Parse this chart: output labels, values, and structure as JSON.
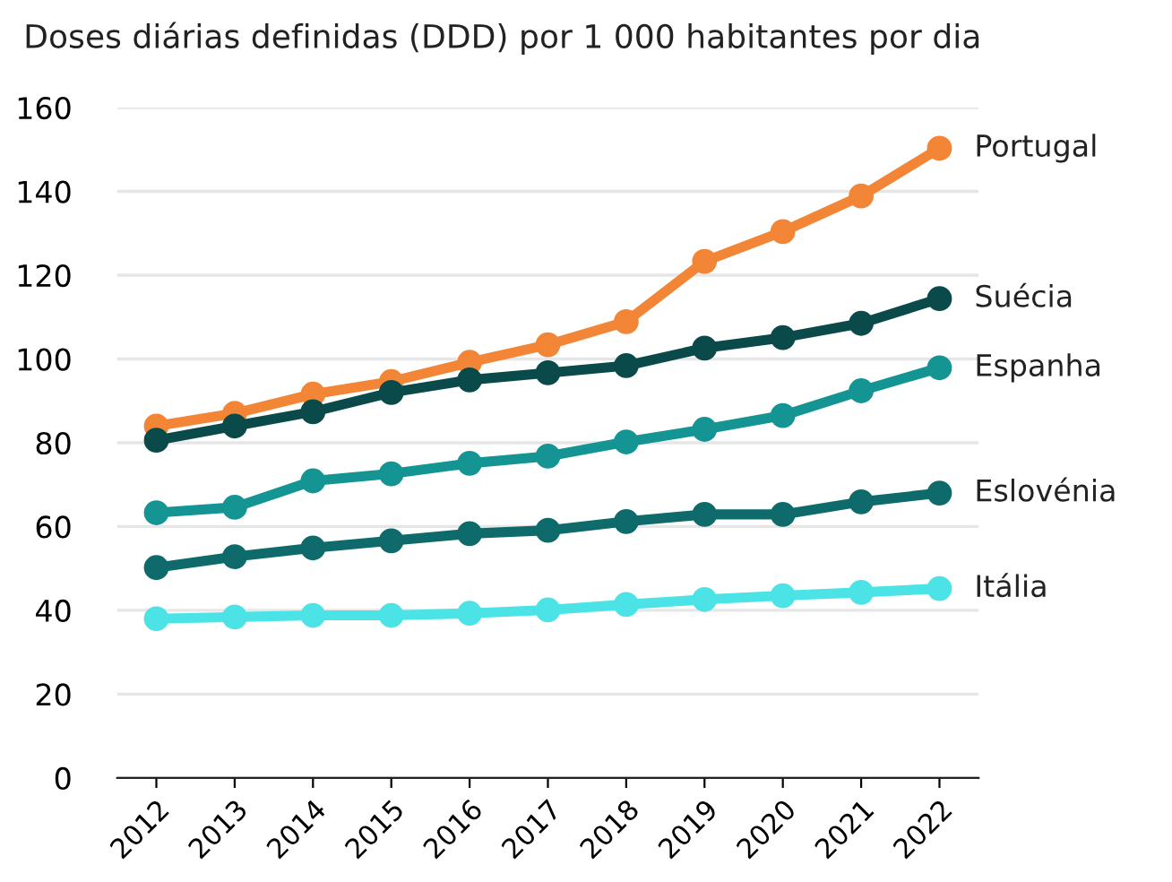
{
  "chart_data": {
    "type": "line",
    "title": "Doses diárias definidas (DDD) por 1 000 habitantes por dia",
    "categories": [
      "2012",
      "2013",
      "2014",
      "2015",
      "2016",
      "2017",
      "2018",
      "2019",
      "2020",
      "2021",
      "2022"
    ],
    "series": [
      {
        "name": "Portugal",
        "color": "#f28536",
        "values": [
          84,
          87,
          91.6,
          94.6,
          99.2,
          103.4,
          108.9,
          123.3,
          130.4,
          138.9,
          150.3
        ]
      },
      {
        "name": "Suécia",
        "color": "#0b4a4a",
        "values": [
          80.6,
          84,
          87.4,
          92,
          95,
          96.7,
          98.4,
          102.6,
          105.1,
          108.5,
          114.4
        ]
      },
      {
        "name": "Espanha",
        "color": "#159494",
        "values": [
          63.3,
          64.6,
          70.9,
          72.6,
          75.1,
          76.8,
          80.2,
          83.2,
          86.5,
          92.4,
          97.9
        ]
      },
      {
        "name": "Eslovénia",
        "color": "#0f6b6b",
        "values": [
          50.2,
          52.8,
          54.9,
          56.6,
          58.3,
          59.1,
          61.2,
          62.9,
          62.9,
          65.9,
          68
        ]
      },
      {
        "name": "Itália",
        "color": "#4be3e6",
        "values": [
          38,
          38.4,
          38.8,
          38.8,
          39.3,
          40.1,
          41.4,
          42.6,
          43.5,
          44.3,
          45.2
        ]
      }
    ],
    "ylim": [
      0,
      160
    ],
    "yticks": [
      0,
      20,
      40,
      60,
      80,
      100,
      120,
      140,
      160
    ],
    "grid": "y",
    "marker": "circle",
    "line_style": "solid",
    "legend": false
  }
}
